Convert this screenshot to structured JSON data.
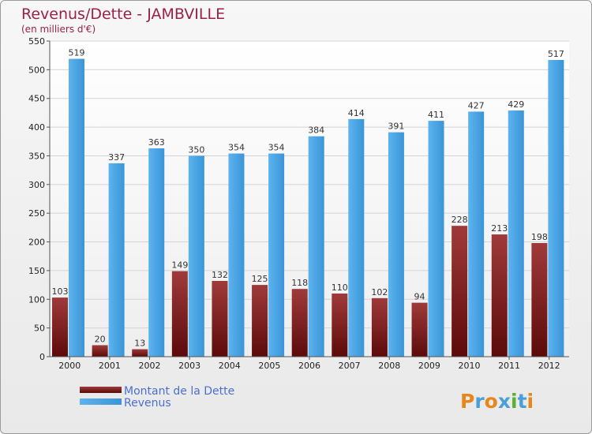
{
  "chart_data": {
    "type": "bar",
    "title": "Revenus/Dette - JAMBVILLE",
    "subtitle": "(en milliers d'€)",
    "categories": [
      "2000",
      "2001",
      "2002",
      "2003",
      "2004",
      "2005",
      "2006",
      "2007",
      "2008",
      "2009",
      "2010",
      "2011",
      "2012"
    ],
    "series": [
      {
        "name": "Montant de la Dette",
        "color": "#7a1e1e",
        "values": [
          103,
          20,
          13,
          149,
          132,
          125,
          118,
          110,
          102,
          94,
          228,
          213,
          198
        ]
      },
      {
        "name": "Revenus",
        "color": "#3c9ee0",
        "values": [
          519,
          337,
          363,
          350,
          354,
          354,
          384,
          414,
          391,
          411,
          427,
          429,
          517
        ]
      }
    ],
    "ylim": [
      0,
      550
    ],
    "yticks": [
      0,
      50,
      100,
      150,
      200,
      250,
      300,
      350,
      400,
      450,
      500,
      550
    ],
    "grid": true,
    "legend_position": "bottom-left"
  },
  "logo": {
    "text": "Proxiti"
  }
}
